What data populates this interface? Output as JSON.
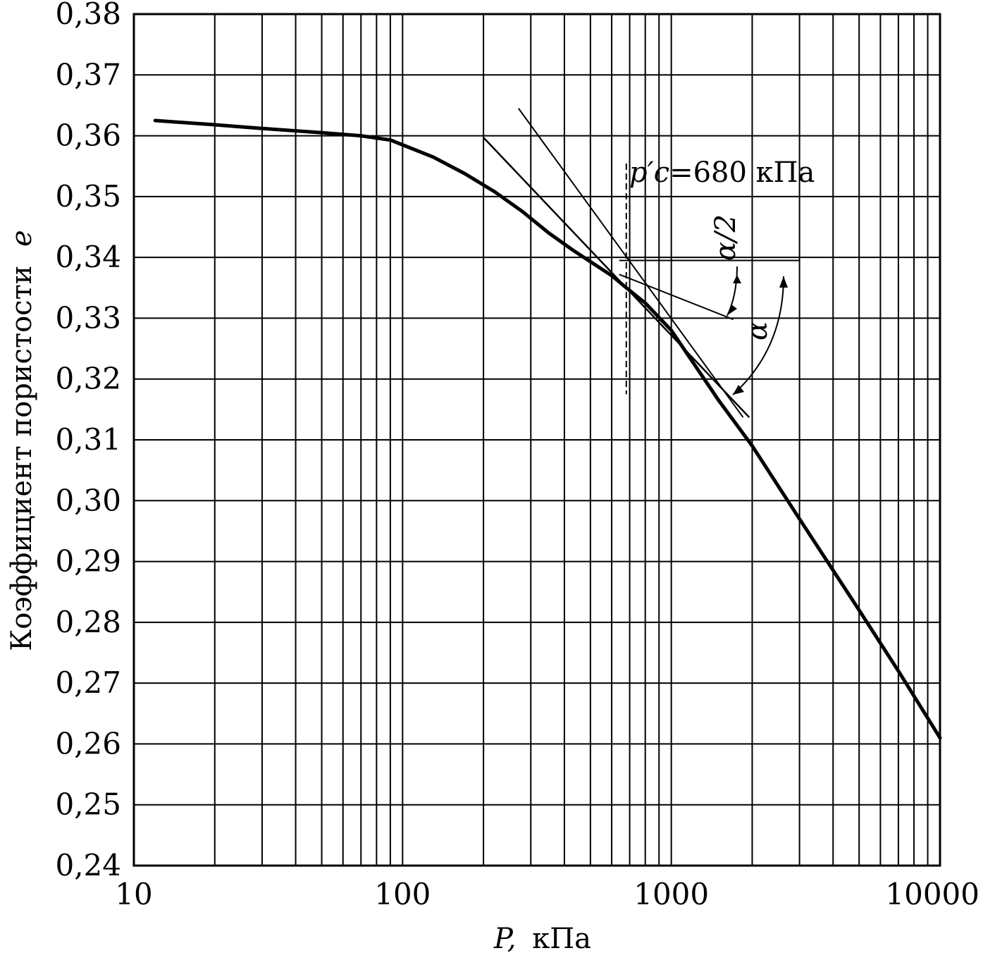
{
  "chart_data": {
    "type": "line",
    "title": "",
    "xlabel_var": "P,",
    "xlabel_unit": "кПа",
    "ylabel_text": "Коэффициент пористости",
    "ylabel_var": "e",
    "x_scale": "log",
    "xlim": [
      10,
      10000
    ],
    "ylim": [
      0.24,
      0.38
    ],
    "grid": true,
    "x_tick_labels": [
      "10",
      "100",
      "1000",
      "10000"
    ],
    "y_tick_labels": [
      "0,38",
      "0,37",
      "0,36",
      "0,35",
      "0,34",
      "0,33",
      "0,32",
      "0,31",
      "0,30",
      "0,29",
      "0,28",
      "0,27",
      "0,26",
      "0,25",
      "0,24"
    ],
    "series": [
      {
        "x": [
          12,
          20,
          30,
          50,
          70,
          90,
          100,
          130,
          170,
          220,
          280,
          350,
          430,
          520,
          600,
          680,
          800,
          1000,
          1500,
          2000,
          3000,
          5000,
          7000,
          10000
        ],
        "y": [
          0.3625,
          0.3618,
          0.3612,
          0.3605,
          0.36,
          0.3593,
          0.3585,
          0.3565,
          0.3538,
          0.3508,
          0.3475,
          0.344,
          0.3412,
          0.3388,
          0.337,
          0.335,
          0.3325,
          0.328,
          0.3165,
          0.309,
          0.297,
          0.282,
          0.272,
          0.261
        ]
      }
    ],
    "construction_lines": [
      {
        "x": [
          200,
          1950
        ],
        "y": [
          0.3597,
          0.3137
        ]
      },
      {
        "x": [
          270,
          1850
        ],
        "y": [
          0.3645,
          0.3137
        ]
      },
      {
        "x": [
          640,
          3000
        ],
        "y": [
          0.3395,
          0.3395
        ]
      },
      {
        "x": [
          640,
          1700
        ],
        "y": [
          0.3372,
          0.3298
        ]
      }
    ],
    "preconsolidation": {
      "x": 680,
      "label_var": "p′c",
      "label_value": "=680 кПа"
    },
    "angle_labels": [
      "α/2",
      "α"
    ]
  }
}
